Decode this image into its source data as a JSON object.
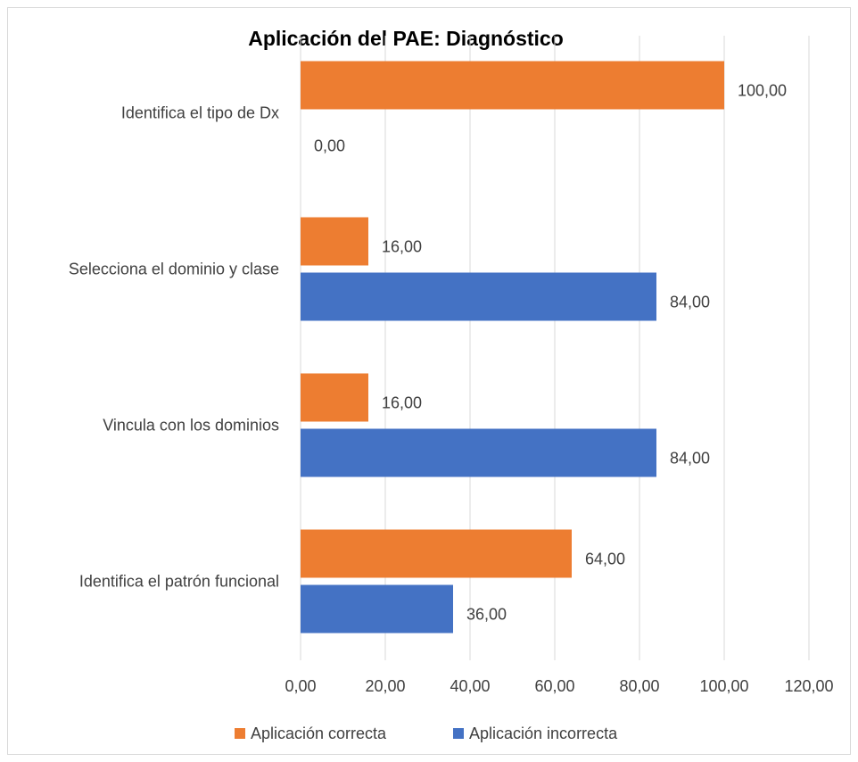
{
  "chart_data": {
    "type": "hbar",
    "title": "Aplicación del PAE: Diagnóstico",
    "categories": [
      "Identifica el tipo de Dx",
      "Selecciona el dominio y clase",
      "Vincula con los dominios",
      "Identifica  el patrón funcional"
    ],
    "series": [
      {
        "name": "Aplicación correcta",
        "color": "#ed7d31",
        "values": [
          100,
          16,
          16,
          64
        ],
        "value_labels": [
          "100,00",
          "16,00",
          "16,00",
          "64,00"
        ]
      },
      {
        "name": "Aplicación incorrecta",
        "color": "#4472c4",
        "values": [
          0,
          84,
          84,
          36
        ],
        "value_labels": [
          "0,00",
          "84,00",
          "84,00",
          "36,00"
        ]
      }
    ],
    "xlim": [
      0,
      120
    ],
    "xticks": [
      {
        "value": 0,
        "label": "0,00"
      },
      {
        "value": 20,
        "label": "20,00"
      },
      {
        "value": 40,
        "label": "40,00"
      },
      {
        "value": 60,
        "label": "60,00"
      },
      {
        "value": 80,
        "label": "80,00"
      },
      {
        "value": 100,
        "label": "100,00"
      },
      {
        "value": 120,
        "label": "120,00"
      }
    ],
    "grid": true,
    "legend": "bottom"
  }
}
